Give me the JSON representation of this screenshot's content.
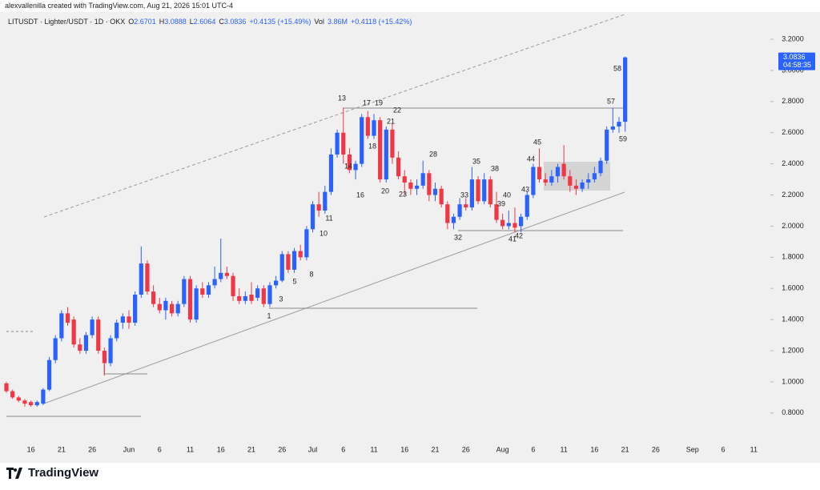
{
  "credit": "alexvallenilla created with TradingView.com, Aug 21, 2026 15:01 UTC-4",
  "brand": "TradingView",
  "chart_data": {
    "type": "candlestick",
    "symbol": "LITUSDT · Lighter/USDT · 1D · OKX",
    "legend_fields": [
      {
        "label": "O",
        "value": "2.6701"
      },
      {
        "label": "H",
        "value": "3.0888"
      },
      {
        "label": "L",
        "value": "2.6064"
      },
      {
        "label": "C",
        "value": "3.0836"
      }
    ],
    "change": "+0.4135 (+15.49%)",
    "volume_label": "Vol",
    "volume": "3.86M",
    "volume_change": "+0.4118 (+15.42%)",
    "last_price": 3.0836,
    "countdown": "04:58:35",
    "up_color": "#2962ff",
    "down_color": "#f23645",
    "grid": false,
    "categories": [
      null,
      null,
      null,
      null,
      "16",
      null,
      null,
      null,
      null,
      "21",
      null,
      null,
      null,
      null,
      "26",
      null,
      null,
      null,
      null,
      null,
      "Jun",
      null,
      null,
      null,
      null,
      "6",
      null,
      null,
      null,
      null,
      "11",
      null,
      null,
      null,
      null,
      "16",
      null,
      null,
      null,
      null,
      "21",
      null,
      null,
      null,
      null,
      "26",
      null,
      null,
      null,
      null,
      "Jul",
      null,
      null,
      null,
      null,
      "6",
      null,
      null,
      null,
      null,
      "11",
      null,
      null,
      null,
      null,
      "16",
      null,
      null,
      null,
      null,
      "21",
      null,
      null,
      null,
      null,
      "26",
      null,
      null,
      null,
      null,
      null,
      "Aug",
      null,
      null,
      null,
      null,
      "6",
      null,
      null,
      null,
      null,
      "11",
      null,
      null,
      null,
      null,
      "16",
      null,
      null,
      null,
      null,
      "21",
      null,
      null,
      null,
      null,
      "26",
      null,
      null,
      null,
      null,
      null,
      "Sep",
      null,
      null,
      null,
      null,
      "6",
      null,
      null,
      null,
      null,
      "11",
      null,
      null,
      null
    ],
    "open": [
      0.99,
      0.94,
      0.9,
      0.88,
      0.87,
      0.85,
      0.86,
      0.95,
      1.14,
      1.28,
      1.44,
      1.4,
      1.24,
      1.2,
      1.3,
      1.4,
      1.2,
      1.12,
      1.28,
      1.38,
      1.42,
      1.38,
      1.56,
      1.76,
      1.58,
      1.5,
      1.46,
      1.5,
      1.44,
      1.5,
      1.66,
      1.4,
      1.6,
      1.56,
      1.62,
      1.66,
      1.7,
      1.68,
      1.55,
      1.52,
      1.56,
      1.54,
      1.6,
      1.5,
      1.62,
      1.65,
      1.82,
      1.72,
      1.84,
      1.8,
      1.98,
      2.14,
      2.1,
      2.22,
      2.46,
      2.6,
      2.46,
      2.36,
      2.4,
      2.7,
      2.58,
      2.68,
      2.3,
      2.62,
      2.44,
      2.32,
      2.28,
      2.24,
      2.26,
      2.34,
      2.2,
      2.24,
      2.14,
      2.02,
      2.06,
      2.14,
      2.12,
      2.3,
      2.16,
      2.3,
      2.14,
      2.04,
      2.0,
      2.02,
      2.0,
      2.06,
      2.2,
      2.38,
      2.3,
      2.28,
      2.32,
      2.4,
      2.32,
      2.26,
      2.24,
      2.28,
      2.3,
      2.34,
      2.42,
      2.62,
      2.64,
      2.6701,
      null,
      null,
      null,
      null,
      null,
      null,
      null,
      null,
      null,
      null,
      null,
      null,
      null,
      null,
      null,
      null,
      null,
      null,
      null,
      null,
      null,
      null,
      null,
      null
    ],
    "high": [
      1.0,
      0.95,
      0.91,
      0.89,
      0.88,
      0.88,
      0.96,
      1.16,
      1.3,
      1.46,
      1.48,
      1.42,
      1.28,
      1.32,
      1.42,
      1.42,
      1.22,
      1.3,
      1.4,
      1.44,
      1.46,
      1.58,
      1.87,
      1.78,
      1.62,
      1.54,
      1.54,
      1.52,
      1.52,
      1.68,
      1.68,
      1.62,
      1.64,
      1.64,
      1.74,
      1.92,
      1.74,
      1.7,
      1.6,
      1.58,
      1.64,
      1.62,
      1.62,
      1.64,
      1.68,
      1.84,
      1.84,
      1.86,
      1.88,
      2.0,
      2.16,
      2.22,
      2.26,
      2.5,
      2.62,
      2.76,
      2.5,
      2.42,
      2.72,
      2.74,
      2.72,
      2.7,
      2.64,
      2.66,
      2.48,
      2.36,
      2.3,
      2.3,
      2.42,
      2.36,
      2.28,
      2.26,
      2.16,
      2.08,
      2.18,
      2.18,
      2.38,
      2.32,
      2.34,
      2.32,
      2.22,
      2.08,
      2.1,
      2.12,
      2.08,
      2.22,
      2.4,
      2.5,
      2.34,
      2.36,
      2.4,
      2.52,
      2.36,
      2.3,
      2.3,
      2.34,
      2.38,
      2.44,
      2.64,
      2.76,
      2.7,
      3.0888,
      null,
      null,
      null,
      null,
      null,
      null,
      null,
      null,
      null,
      null,
      null,
      null,
      null,
      null,
      null,
      null,
      null,
      null,
      null,
      null,
      null,
      null,
      null,
      null
    ],
    "low": [
      0.93,
      0.89,
      0.87,
      0.84,
      0.84,
      0.84,
      0.85,
      0.94,
      1.12,
      1.26,
      1.36,
      1.22,
      1.18,
      1.18,
      1.28,
      1.18,
      1.04,
      1.1,
      1.26,
      1.34,
      1.34,
      1.36,
      1.54,
      1.56,
      1.48,
      1.44,
      1.4,
      1.42,
      1.42,
      1.48,
      1.38,
      1.38,
      1.54,
      1.54,
      1.6,
      1.64,
      1.66,
      1.52,
      1.5,
      1.5,
      1.5,
      1.52,
      1.48,
      1.48,
      1.6,
      1.64,
      1.7,
      1.7,
      1.78,
      1.78,
      1.96,
      2.06,
      2.08,
      2.2,
      2.44,
      2.4,
      2.34,
      2.3,
      2.38,
      2.56,
      2.56,
      2.28,
      2.28,
      2.4,
      2.3,
      2.2,
      2.2,
      2.2,
      2.24,
      2.16,
      2.16,
      2.12,
      1.98,
      1.98,
      2.04,
      2.1,
      2.1,
      2.14,
      2.14,
      2.12,
      2.02,
      1.98,
      1.98,
      1.96,
      1.96,
      2.04,
      2.18,
      2.28,
      2.26,
      2.26,
      2.28,
      2.3,
      2.22,
      2.2,
      2.22,
      2.24,
      2.28,
      2.32,
      2.4,
      2.6,
      2.6,
      2.6064,
      null,
      null,
      null,
      null,
      null,
      null,
      null,
      null,
      null,
      null,
      null,
      null,
      null,
      null,
      null,
      null,
      null,
      null,
      null,
      null,
      null,
      null,
      null,
      null
    ],
    "close": [
      0.94,
      0.9,
      0.88,
      0.86,
      0.85,
      0.87,
      0.95,
      1.14,
      1.28,
      1.44,
      1.38,
      1.24,
      1.2,
      1.3,
      1.4,
      1.2,
      1.12,
      1.28,
      1.38,
      1.42,
      1.38,
      1.56,
      1.76,
      1.58,
      1.5,
      1.46,
      1.52,
      1.44,
      1.5,
      1.66,
      1.4,
      1.6,
      1.56,
      1.62,
      1.66,
      1.7,
      1.68,
      1.55,
      1.52,
      1.55,
      1.52,
      1.6,
      1.5,
      1.62,
      1.65,
      1.82,
      1.72,
      1.84,
      1.8,
      1.98,
      2.14,
      2.1,
      2.22,
      2.46,
      2.6,
      2.46,
      2.36,
      2.4,
      2.7,
      2.58,
      2.68,
      2.3,
      2.62,
      2.44,
      2.32,
      2.28,
      2.24,
      2.26,
      2.34,
      2.2,
      2.24,
      2.14,
      2.02,
      2.06,
      2.14,
      2.12,
      2.3,
      2.16,
      2.3,
      2.14,
      2.04,
      2.0,
      2.02,
      1.99,
      2.06,
      2.2,
      2.38,
      2.3,
      2.28,
      2.32,
      2.38,
      2.32,
      2.26,
      2.24,
      2.28,
      2.3,
      2.34,
      2.42,
      2.62,
      2.64,
      2.67,
      3.0836,
      null,
      null,
      null,
      null,
      null,
      null,
      null,
      null,
      null,
      null,
      null,
      null,
      null,
      null,
      null,
      null,
      null,
      null,
      null,
      null,
      null,
      null,
      null,
      null
    ],
    "ylim": [
      0.65,
      3.375
    ],
    "yticks": [
      {
        "value": 0.8,
        "label": "0.8000"
      },
      {
        "value": 1.0,
        "label": "1.0000"
      },
      {
        "value": 1.2,
        "label": "1.2000"
      },
      {
        "value": 1.4,
        "label": "1.4000"
      },
      {
        "value": 1.6,
        "label": "1.6000"
      },
      {
        "value": 1.8,
        "label": "1.8000"
      },
      {
        "value": 2.0,
        "label": "2.0000"
      },
      {
        "value": 2.2,
        "label": "2.2000"
      },
      {
        "value": 2.4,
        "label": "2.4000"
      },
      {
        "value": 2.6,
        "label": "2.6000"
      },
      {
        "value": 2.8,
        "label": "2.8000"
      },
      {
        "value": 3.0,
        "label": "3.0000"
      },
      {
        "value": 3.2,
        "label": "3.2000"
      }
    ],
    "annotations": [
      "1",
      "3",
      "5",
      "8",
      "10",
      "11",
      "13",
      "14",
      "16",
      "17",
      "18",
      "19",
      "20",
      "21",
      "22",
      "23",
      "28",
      "32",
      "33",
      "35",
      "38",
      "39",
      "40",
      "41",
      "42",
      "43",
      "44",
      "45",
      "57",
      "58",
      "59"
    ]
  }
}
